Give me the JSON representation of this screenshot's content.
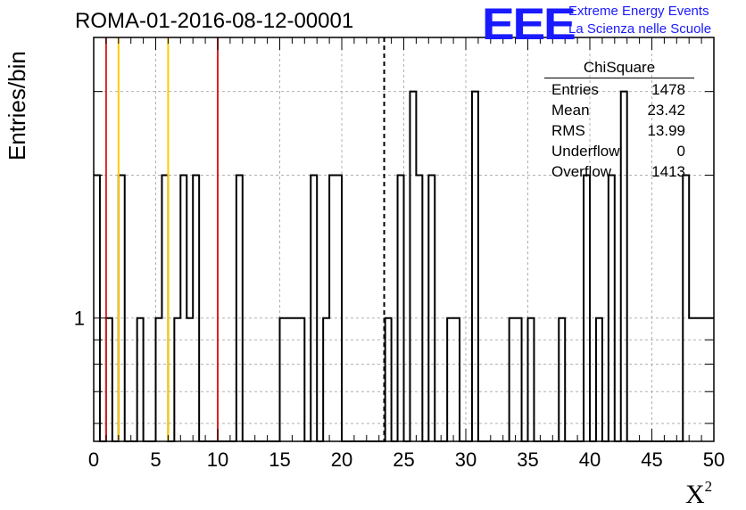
{
  "chart_data": {
    "type": "bar",
    "title": "ROMA-01-2016-08-12-00001",
    "xlabel": "X",
    "xlabel_superscript": "2",
    "ylabel": "Entries/bin",
    "xlim": [
      0,
      50
    ],
    "ylim": [
      0.55,
      3.9
    ],
    "yscale": "log",
    "grid": true,
    "x_ticks": [
      "0",
      "5",
      "10",
      "15",
      "20",
      "25",
      "30",
      "35",
      "40",
      "45",
      "50"
    ],
    "y_ticks": [
      "1"
    ],
    "bin_width": 0.5,
    "bins": [
      {
        "x": 0.0,
        "count": 2
      },
      {
        "x": 1.0,
        "count": 1
      },
      {
        "x": 2.0,
        "count": 2
      },
      {
        "x": 3.5,
        "count": 1
      },
      {
        "x": 5.0,
        "count": 1
      },
      {
        "x": 5.5,
        "count": 2
      },
      {
        "x": 6.5,
        "count": 1
      },
      {
        "x": 7.0,
        "count": 2
      },
      {
        "x": 7.5,
        "count": 1
      },
      {
        "x": 8.0,
        "count": 2
      },
      {
        "x": 11.5,
        "count": 2
      },
      {
        "x": 15.0,
        "count": 1
      },
      {
        "x": 15.5,
        "count": 1
      },
      {
        "x": 16.0,
        "count": 1
      },
      {
        "x": 16.5,
        "count": 1
      },
      {
        "x": 17.5,
        "count": 2
      },
      {
        "x": 18.5,
        "count": 1
      },
      {
        "x": 19.0,
        "count": 2
      },
      {
        "x": 19.5,
        "count": 2
      },
      {
        "x": 23.5,
        "count": 1
      },
      {
        "x": 24.5,
        "count": 2
      },
      {
        "x": 25.5,
        "count": 3
      },
      {
        "x": 26.0,
        "count": 2
      },
      {
        "x": 27.0,
        "count": 2
      },
      {
        "x": 28.5,
        "count": 1
      },
      {
        "x": 29.0,
        "count": 1
      },
      {
        "x": 30.5,
        "count": 3
      },
      {
        "x": 33.5,
        "count": 1
      },
      {
        "x": 34.0,
        "count": 1
      },
      {
        "x": 35.0,
        "count": 1
      },
      {
        "x": 37.5,
        "count": 1
      },
      {
        "x": 39.5,
        "count": 2
      },
      {
        "x": 40.5,
        "count": 1
      },
      {
        "x": 41.5,
        "count": 2
      },
      {
        "x": 42.5,
        "count": 3
      },
      {
        "x": 47.5,
        "count": 2
      },
      {
        "x": 48.0,
        "count": 1
      },
      {
        "x": 48.5,
        "count": 1
      },
      {
        "x": 49.0,
        "count": 1
      },
      {
        "x": 49.5,
        "count": 1
      }
    ],
    "vertical_lines": [
      {
        "x": 1.0,
        "color": "#dd2222",
        "style": "solid"
      },
      {
        "x": 2.0,
        "color": "#ffcc00",
        "style": "solid"
      },
      {
        "x": 6.0,
        "color": "#ffcc00",
        "style": "solid"
      },
      {
        "x": 10.0,
        "color": "#dd2222",
        "style": "solid"
      },
      {
        "x": 23.42,
        "color": "#000000",
        "style": "dashed"
      }
    ],
    "stats_box": {
      "title": "ChiSquare",
      "rows": [
        {
          "label": "Entries",
          "value": "1478"
        },
        {
          "label": "Mean",
          "value": "23.42"
        },
        {
          "label": "RMS",
          "value": "13.99"
        },
        {
          "label": "Underflow",
          "value": "0"
        },
        {
          "label": "Overflow",
          "value": "1413"
        }
      ]
    }
  },
  "logo": {
    "text": "EEE",
    "line1": "Extreme Energy Events",
    "line2": "La Scienza nelle Scuole",
    "color": "#1a1aff"
  }
}
